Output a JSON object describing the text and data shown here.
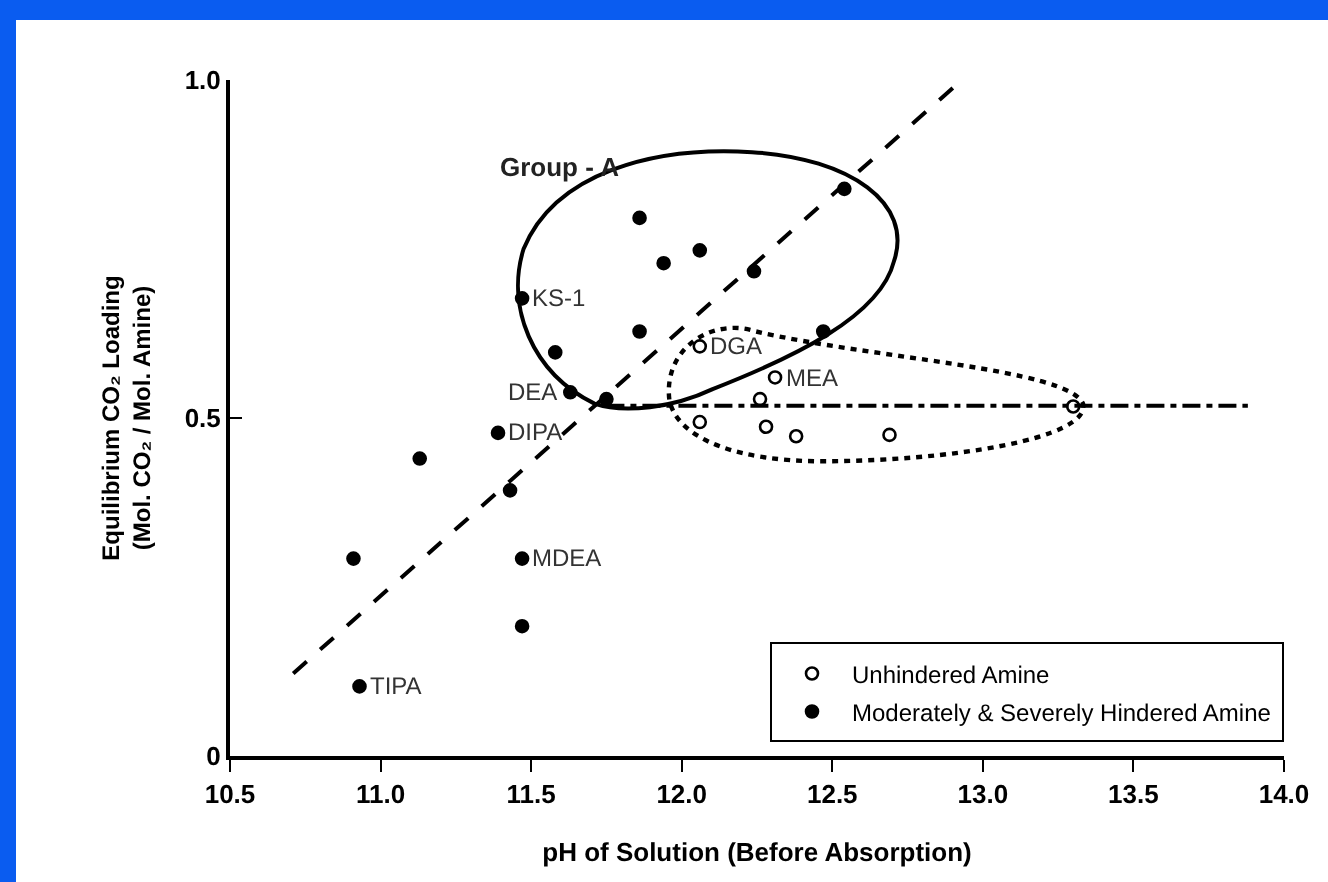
{
  "chart_data": {
    "type": "scatter",
    "xlabel": "pH of Solution (Before Absorption)",
    "ylabel": "Equilibrium CO₂ Loading\n(Mol. CO₂ / Mol. Amine)",
    "xlim": [
      10.5,
      14.0
    ],
    "xticks": [
      10.5,
      {
        "value": 11,
        "label": "11.0"
      },
      11.5,
      {
        "value": 12,
        "label": "12.0"
      },
      12.5,
      {
        "value": 13,
        "label": "13.0"
      },
      13.5,
      {
        "value": 14,
        "label": "14.0"
      }
    ],
    "ylim": [
      0,
      1.0
    ],
    "yticks": [
      0,
      0.5,
      {
        "value": 1,
        "label": "1.0"
      }
    ],
    "grid": false,
    "legend": "bottom right",
    "series": [
      {
        "name": "Unhindered Amine",
        "color": "#000000",
        "marker": "circle-open",
        "x": [
          12.06,
          12.31,
          12.26,
          12.06,
          12.28,
          12.38,
          12.69,
          13.3
        ],
        "values": [
          0.606,
          0.56,
          0.528,
          0.494,
          0.487,
          0.473,
          0.475,
          0.517
        ]
      },
      {
        "name": "Moderately & Severely Hindered Amine",
        "color": "#000000",
        "marker": "circle",
        "x": [
          11.86,
          11.94,
          12.06,
          12.24,
          11.47,
          11.86,
          11.58,
          11.63,
          11.75,
          11.39,
          11.13,
          11.43,
          12.54,
          12.47,
          10.91,
          11.47,
          11.47,
          10.93
        ],
        "values": [
          0.796,
          0.729,
          0.748,
          0.717,
          0.677,
          0.628,
          0.597,
          0.538,
          0.528,
          0.478,
          0.44,
          0.393,
          0.839,
          0.628,
          0.292,
          0.292,
          0.192,
          0.103
        ]
      },
      {
        "type": "line",
        "color": "#000000",
        "line_style": "dashed",
        "x": [
          10.71,
          12.93
        ],
        "values": [
          0.122,
          1.0
        ]
      },
      {
        "type": "line",
        "color": "#000000",
        "line_style": "dashdot",
        "x": [
          11.75,
          13.88
        ],
        "values": [
          0.518,
          0.518
        ]
      }
    ],
    "annotations": [
      "Group - A",
      {
        "text": "KS-1",
        "x": 11.47,
        "y": 0.677
      },
      {
        "text": "DEA",
        "x": 11.63,
        "y": 0.538
      },
      {
        "text": "DIPA",
        "x": 11.39,
        "y": 0.478
      },
      {
        "text": "MDEA",
        "x": 11.47,
        "y": 0.292
      },
      {
        "text": "TIPA",
        "x": 10.93,
        "y": 0.103
      },
      {
        "text": "DGA",
        "x": 12.06,
        "y": 0.606
      },
      {
        "text": "MEA",
        "x": 12.31,
        "y": 0.56
      }
    ]
  }
}
